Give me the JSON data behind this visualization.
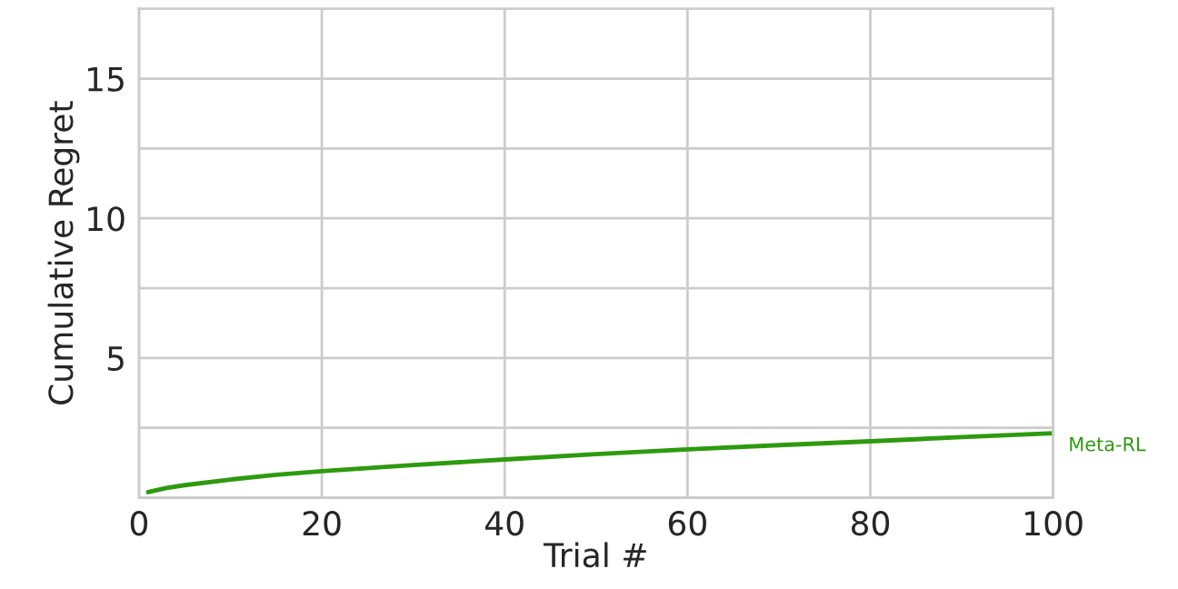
{
  "chart_data": {
    "type": "line",
    "xlabel": "Trial #",
    "ylabel": "Cumulative Regret",
    "xlim": [
      0,
      100
    ],
    "ylim": [
      0,
      17.5
    ],
    "xticks": [
      0,
      20,
      40,
      60,
      80,
      100
    ],
    "yticks": [
      {
        "value": 0,
        "label": null
      },
      {
        "value": 2.5,
        "label": null
      },
      5,
      {
        "value": 7.5,
        "label": null
      },
      10,
      {
        "value": 12.5,
        "label": null
      },
      15
    ],
    "grid": true,
    "series": [
      {
        "name": "Meta-RL",
        "color": "#2e9a0f",
        "x": [
          1,
          3,
          5,
          10,
          15,
          20,
          30,
          40,
          50,
          60,
          70,
          80,
          90,
          100
        ],
        "values": [
          0.2,
          0.35,
          0.45,
          0.65,
          0.82,
          0.95,
          1.17,
          1.37,
          1.56,
          1.73,
          1.88,
          2.02,
          2.17,
          2.31
        ]
      }
    ]
  }
}
